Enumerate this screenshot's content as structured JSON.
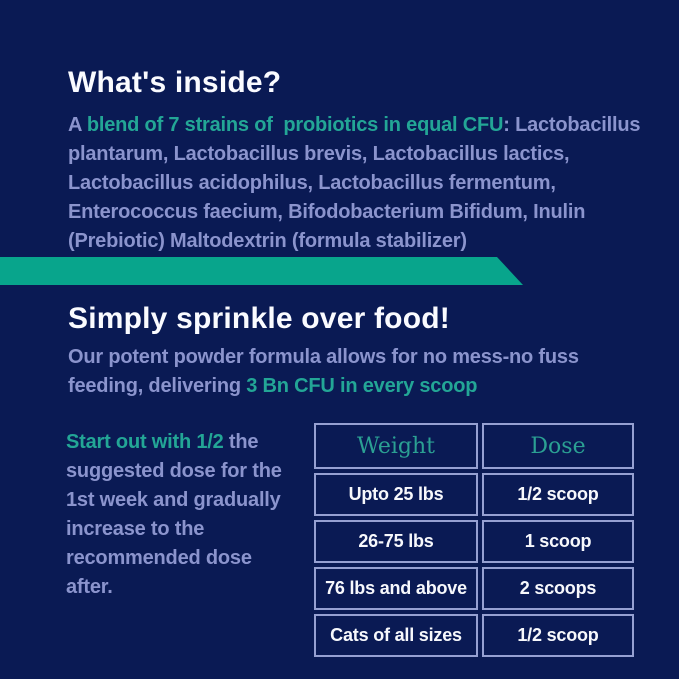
{
  "theme": {
    "background": "#0a1a54",
    "ribbon_teal": "#08a58c",
    "highlight_teal": "#23a696",
    "body_lavender": "#8b94cd",
    "heading_white": "#fafbff",
    "table_border": "#96a0d2"
  },
  "whats_inside": {
    "title": "What's inside?",
    "line1": {
      "pre": "A ",
      "highlight": "blend of 7 strains of  probiotics in equal CFU",
      "post": ": Lactobacillus"
    },
    "line2": "plantarum, Lactobacillus brevis, Lactobacillus lactics,",
    "line3": "Lactobacillus acidophilus, Lactobacillus fermentum,",
    "line4": "Enterococcus faecium, Bifodobacterium Bifidum, Inulin",
    "line5": "(Prebiotic) Maltodextrin (formula stabilizer)"
  },
  "sprinkle": {
    "title": "Simply sprinkle over food!",
    "line1": "Our potent powder formula allows for no mess-no fuss",
    "line2": {
      "pre": "feeding, delivering ",
      "highlight": "3 Bn CFU in every scoop"
    }
  },
  "dosage_note": {
    "line1": {
      "highlight": "Start out with 1/2",
      "post": " the"
    },
    "line2": "suggested dose for the",
    "line3": "1st week and gradually",
    "line4": "increase to the",
    "line5": "recommended dose",
    "line6": "after."
  },
  "dosage_table": {
    "headers": {
      "weight": "Weight",
      "dose": "Dose"
    },
    "rows": [
      {
        "weight": "Upto 25 lbs",
        "dose": "1/2 scoop"
      },
      {
        "weight": "26-75 lbs",
        "dose": "1 scoop"
      },
      {
        "weight": "76 lbs and above",
        "dose": "2 scoops"
      },
      {
        "weight": "Cats of all sizes",
        "dose": "1/2 scoop"
      }
    ]
  }
}
